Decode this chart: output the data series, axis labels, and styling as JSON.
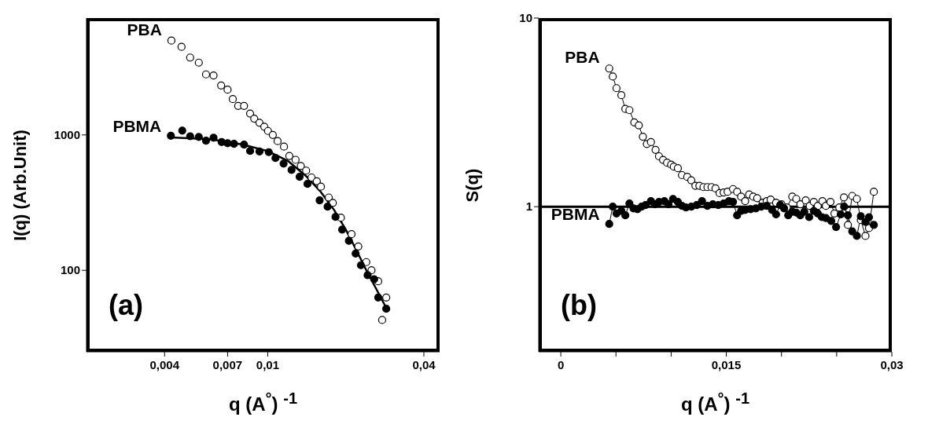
{
  "chart_data": [
    {
      "type": "scatter",
      "ylabel": "I(q)  (Arb.Unit)",
      "xlabel": "q (A$^{°}$) $^{-1}$",
      "log": "xy",
      "marker": "circle",
      "xlim": [
        0.002,
        0.046
      ],
      "xticks": [
        {
          "value": 0.004,
          "label": "0,004"
        },
        {
          "value": 0.007,
          "label": "0,007"
        },
        {
          "value": 0.01,
          "label": "0,01"
        },
        {
          "value": 0.04,
          "label": "0,04"
        }
      ],
      "ylim": [
        25,
        7300
      ],
      "yticks": [
        100,
        1000
      ],
      "annotations": [
        "(a)"
      ],
      "series": [
        {
          "name": "PBA",
          "color": "#000000",
          "x": [
            0.00425,
            0.00465,
            0.00502,
            0.00542,
            0.00578,
            0.00618,
            0.00661,
            0.007,
            0.00733,
            0.00769,
            0.0081,
            0.00855,
            0.00887,
            0.00929,
            0.0097,
            0.01002,
            0.01046,
            0.01091,
            0.01155,
            0.01211,
            0.0128,
            0.01341,
            0.01406,
            0.01475,
            0.01546,
            0.01603,
            0.01719,
            0.01782,
            0.01914,
            0.02104,
            0.02234,
            0.02399,
            0.02512,
            0.02667,
            0.02864,
            0.02762
          ],
          "values": [
            4980,
            4470,
            3730,
            3420,
            2800,
            2750,
            2320,
            2160,
            1840,
            1640,
            1640,
            1440,
            1320,
            1230,
            1150,
            1070,
            1000,
            900,
            820,
            700,
            655,
            590,
            545,
            485,
            455,
            415,
            345,
            315,
            245,
            185,
            150,
            115,
            100,
            83,
            63,
            43
          ]
        },
        {
          "name": "PBMA",
          "color": "#000000",
          "x": [
            0.00423,
            0.00468,
            0.00502,
            0.00542,
            0.00578,
            0.00618,
            0.00664,
            0.007,
            0.00741,
            0.0081,
            0.00855,
            0.00929,
            0.01009,
            0.01071,
            0.01151,
            0.01235,
            0.01327,
            0.01423,
            0.01585,
            0.01701,
            0.01825,
            0.01936,
            0.02055,
            0.02182,
            0.02287,
            0.02427,
            0.02572,
            0.02667,
            0.02864
          ],
          "values": [
            987,
            1076,
            978,
            966,
            906,
            953,
            887,
            868,
            859,
            849,
            762,
            755,
            746,
            676,
            614,
            552,
            491,
            435,
            329,
            295,
            248,
            200,
            165,
            133,
            109,
            92,
            86,
            63,
            52
          ]
        },
        {
          "type": "line",
          "color": "#000000",
          "marker": "none",
          "x": [
            0.00423,
            0.006,
            0.008,
            0.01,
            0.012,
            0.014,
            0.016,
            0.018,
            0.02,
            0.022,
            0.024,
            0.026,
            0.0286
          ],
          "values": [
            960,
            930,
            850,
            760,
            640,
            500,
            380,
            280,
            200,
            140,
            100,
            75,
            53
          ]
        }
      ]
    },
    {
      "type": "line",
      "ylabel": "S(q)",
      "xlabel": "q (A$^{°}$) $^{-1}$",
      "log": "y",
      "marker": "circle",
      "xlim": [
        -0.002,
        0.03
      ],
      "xticks": [
        0,
        {
          "value": 0.005,
          "label": null
        },
        {
          "value": 0.01,
          "label": null
        },
        {
          "value": 0.015,
          "label": "0,015"
        },
        {
          "value": 0.02,
          "label": null
        },
        {
          "value": 0.025,
          "label": null
        },
        {
          "value": 0.03,
          "label": "0,03"
        }
      ],
      "ylim": [
        0.17,
        10
      ],
      "yticks": [
        1,
        10
      ],
      "annotations": [
        "(b)"
      ],
      "ref_lines": [
        {
          "axis": "y",
          "value": 1,
          "color": "#000000"
        }
      ],
      "series": [
        {
          "name": "PBA",
          "color": "#000000",
          "x": [
            0.00439,
            0.00471,
            0.00505,
            0.00549,
            0.00585,
            0.00622,
            0.00666,
            0.00707,
            0.00744,
            0.0078,
            0.00817,
            0.00859,
            0.0089,
            0.00927,
            0.00963,
            0.01,
            0.01024,
            0.01061,
            0.01098,
            0.01146,
            0.01183,
            0.0122,
            0.01256,
            0.01293,
            0.01329,
            0.01366,
            0.01402,
            0.01439,
            0.01476,
            0.01512,
            0.01561,
            0.01598,
            0.01634,
            0.01671,
            0.01707,
            0.01744,
            0.0178,
            0.01829,
            0.01866,
            0.01902,
            0.01951,
            0.02,
            0.02049,
            0.02098,
            0.02134,
            0.02171,
            0.0222,
            0.02256,
            0.02293,
            0.02329,
            0.02371,
            0.02402,
            0.02444,
            0.0248,
            0.02524,
            0.02566,
            0.02602,
            0.02641,
            0.02683,
            0.02719,
            0.02761,
            0.02793,
            0.02837
          ],
          "values": [
            5.4,
            4.9,
            4.25,
            3.9,
            3.3,
            3.25,
            2.8,
            2.7,
            2.35,
            2.15,
            2.2,
            2.0,
            1.85,
            1.77,
            1.71,
            1.67,
            1.63,
            1.6,
            1.47,
            1.44,
            1.38,
            1.29,
            1.29,
            1.27,
            1.27,
            1.27,
            1.25,
            1.18,
            1.19,
            1.2,
            1.24,
            1.2,
            1.13,
            1.07,
            1.16,
            1.13,
            1.11,
            1.05,
            1.07,
            1.09,
            1.05,
            1.03,
            0.99,
            1.13,
            1.1,
            1.03,
            1.08,
            1.01,
            1.06,
            1.01,
            1.07,
            1.01,
            1.06,
            0.92,
            0.99,
            1.12,
            0.8,
            1.14,
            1.1,
            0.85,
            0.7,
            0.77,
            1.2
          ]
        },
        {
          "name": "PBMA",
          "color": "#000000",
          "x": [
            0.00439,
            0.00471,
            0.00505,
            0.00549,
            0.00585,
            0.00622,
            0.00659,
            0.00695,
            0.00732,
            0.00768,
            0.00817,
            0.00854,
            0.0089,
            0.00939,
            0.00976,
            0.01017,
            0.01061,
            0.01098,
            0.01134,
            0.01183,
            0.01232,
            0.0128,
            0.01329,
            0.01378,
            0.01427,
            0.01476,
            0.01524,
            0.01561,
            0.01598,
            0.01634,
            0.01671,
            0.0172,
            0.01768,
            0.01817,
            0.01866,
            0.01915,
            0.01951,
            0.01988,
            0.02024,
            0.02061,
            0.02098,
            0.02134,
            0.02171,
            0.02207,
            0.02251,
            0.02293,
            0.02329,
            0.02366,
            0.02402,
            0.02451,
            0.02495,
            0.02537,
            0.02568,
            0.02602,
            0.02641,
            0.02683,
            0.02719,
            0.02761,
            0.02793,
            0.02837
          ],
          "values": [
            0.81,
            1.0,
            0.92,
            0.95,
            0.9,
            1.04,
            0.98,
            0.97,
            1.0,
            1.02,
            1.07,
            1.03,
            1.06,
            1.07,
            1.03,
            1.1,
            1.06,
            1.01,
            0.99,
            1.0,
            1.02,
            1.07,
            1.01,
            1.03,
            1.02,
            1.04,
            1.07,
            1.06,
            0.9,
            0.95,
            0.96,
            0.97,
            0.98,
            1.0,
            1.01,
            0.96,
            0.91,
            1.02,
            0.98,
            0.9,
            0.94,
            0.93,
            0.9,
            0.94,
            0.88,
            0.95,
            0.92,
            0.88,
            0.87,
            0.84,
            0.78,
            0.91,
            1.0,
            0.9,
            0.74,
            0.7,
            0.89,
            0.83,
            0.88,
            0.8
          ]
        }
      ]
    }
  ]
}
